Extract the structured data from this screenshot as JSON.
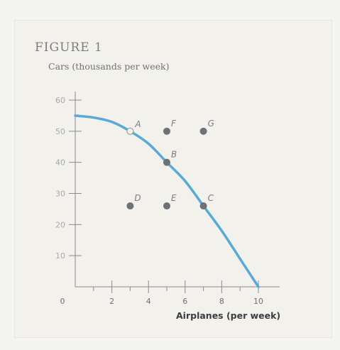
{
  "figure_label": "FIGURE 1",
  "chart_data": {
    "type": "scatter",
    "ylabel": "Cars (thousands per week)",
    "xlabel": "Airplanes (per week)",
    "xlim": [
      0,
      10
    ],
    "ylim": [
      0,
      60
    ],
    "x_ticks": [
      {
        "value": 0,
        "label": "0"
      },
      {
        "value": 2,
        "label": "2"
      },
      {
        "value": 4,
        "label": "4"
      },
      {
        "value": 6,
        "label": "6"
      },
      {
        "value": 8,
        "label": "8"
      },
      {
        "value": 10,
        "label": "10"
      }
    ],
    "x_minor_ticks": [
      1,
      3,
      5,
      7,
      9
    ],
    "y_ticks": [
      {
        "value": 10,
        "label": "10"
      },
      {
        "value": 20,
        "label": "20"
      },
      {
        "value": 30,
        "label": "30"
      },
      {
        "value": 40,
        "label": "40"
      },
      {
        "value": 50,
        "label": "50"
      },
      {
        "value": 60,
        "label": "60"
      }
    ],
    "curve": {
      "name": "",
      "color": "#5aa9d6",
      "points": [
        [
          0,
          55
        ],
        [
          1,
          54.4
        ],
        [
          2,
          53
        ],
        [
          3,
          50
        ],
        [
          4,
          46
        ],
        [
          5,
          40
        ],
        [
          6,
          34
        ],
        [
          7,
          26
        ],
        [
          8,
          18
        ],
        [
          9,
          9
        ],
        [
          10,
          0
        ]
      ]
    },
    "points": [
      {
        "label": "A",
        "x": 3,
        "y": 50,
        "hollow": true
      },
      {
        "label": "F",
        "x": 5,
        "y": 50
      },
      {
        "label": "G",
        "x": 7,
        "y": 50
      },
      {
        "label": "B",
        "x": 5,
        "y": 40
      },
      {
        "label": "D",
        "x": 3,
        "y": 26
      },
      {
        "label": "E",
        "x": 5,
        "y": 26
      },
      {
        "label": "C",
        "x": 7,
        "y": 26
      }
    ],
    "colors": {
      "point": "#6e7175",
      "axis": "#8a8c8f",
      "label": "#7a7c80"
    }
  }
}
